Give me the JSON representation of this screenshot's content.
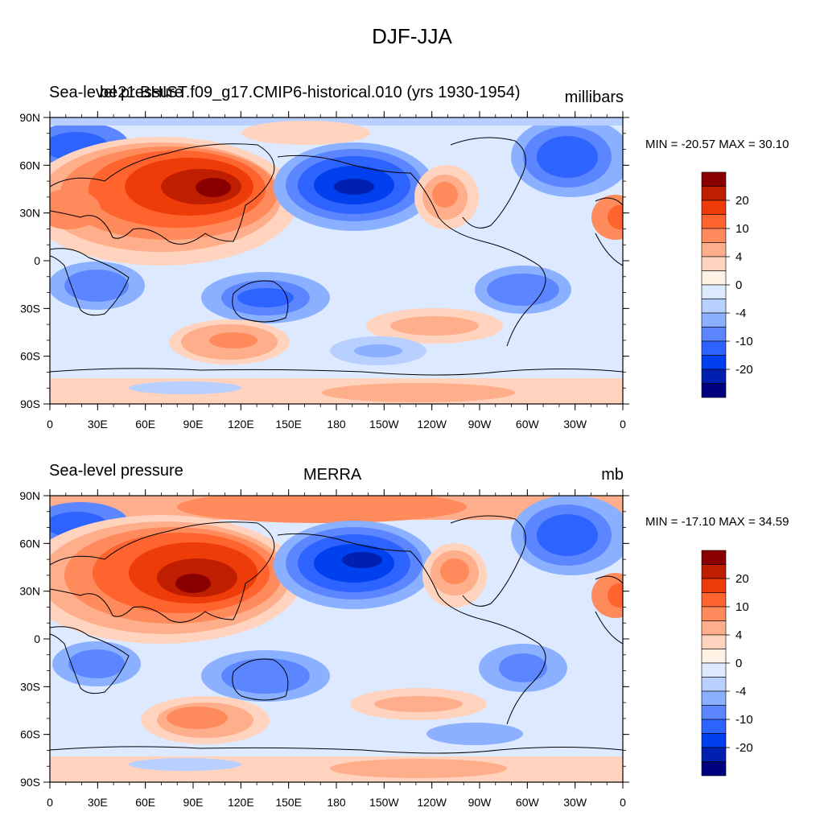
{
  "title": "DJF-JJA",
  "colors": [
    "#00007f",
    "#0020b0",
    "#0040ee",
    "#2d63ff",
    "#5c86ff",
    "#8ab0ff",
    "#b8d0ff",
    "#dde9ff",
    "#fff1e4",
    "#ffd3bd",
    "#ffae8c",
    "#ff8a5c",
    "#ff632e",
    "#ee3c08",
    "#c01e00",
    "#8a0000"
  ],
  "contour_levels": [
    -30,
    -20,
    -15,
    -10,
    -6,
    -4,
    -2,
    0,
    2,
    4,
    6,
    10,
    15,
    20,
    30
  ],
  "colorbar_labels": [
    "20",
    "10",
    "4",
    "0",
    "-4",
    "-10",
    "-20"
  ],
  "lat_labels": [
    "90N",
    "60N",
    "30N",
    "0",
    "30S",
    "60S",
    "90S"
  ],
  "lon_labels": [
    "0",
    "30E",
    "60E",
    "90E",
    "120E",
    "150E",
    "180",
    "150W",
    "120W",
    "90W",
    "60W",
    "30W",
    "0"
  ],
  "panels": [
    {
      "left_label": "Sea-level pressure",
      "case_label": "be21.BHIST.f09_g17.CMIP6-historical.010 (yrs 1930-1954)",
      "units": "millibars",
      "minmax": "MIN = -20.57 MAX =  30.10"
    },
    {
      "left_label": "Sea-level pressure",
      "case_label": "MERRA",
      "units": "mb",
      "minmax": "MIN = -17.10 MAX =  34.59"
    }
  ]
}
